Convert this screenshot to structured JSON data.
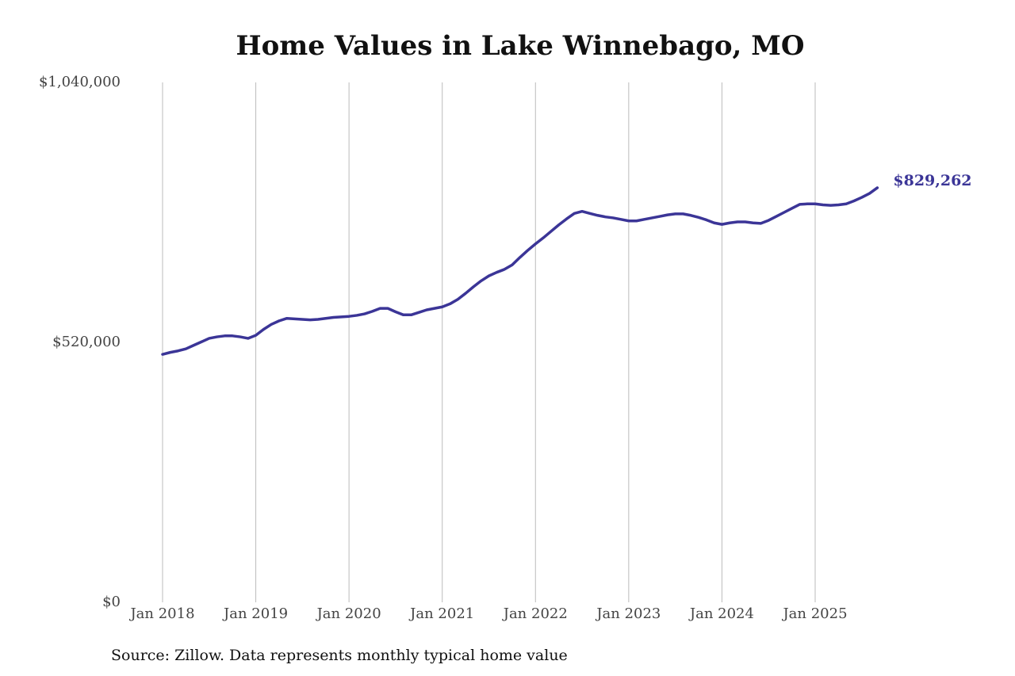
{
  "chart_data": {
    "type": "line",
    "title": "Home Values in Lake Winnebago, MO",
    "source": "Source: Zillow. Data represents monthly typical home value",
    "x": [
      "2018-01",
      "2018-02",
      "2018-03",
      "2018-04",
      "2018-05",
      "2018-06",
      "2018-07",
      "2018-08",
      "2018-09",
      "2018-10",
      "2018-11",
      "2018-12",
      "2019-01",
      "2019-02",
      "2019-03",
      "2019-04",
      "2019-05",
      "2019-06",
      "2019-07",
      "2019-08",
      "2019-09",
      "2019-10",
      "2019-11",
      "2019-12",
      "2020-01",
      "2020-02",
      "2020-03",
      "2020-04",
      "2020-05",
      "2020-06",
      "2020-07",
      "2020-08",
      "2020-09",
      "2020-10",
      "2020-11",
      "2020-12",
      "2021-01",
      "2021-02",
      "2021-03",
      "2021-04",
      "2021-05",
      "2021-06",
      "2021-07",
      "2021-08",
      "2021-09",
      "2021-10",
      "2021-11",
      "2021-12",
      "2022-01",
      "2022-02",
      "2022-03",
      "2022-04",
      "2022-05",
      "2022-06",
      "2022-07",
      "2022-08",
      "2022-09",
      "2022-10",
      "2022-11",
      "2022-12",
      "2023-01",
      "2023-02",
      "2023-03",
      "2023-04",
      "2023-05",
      "2023-06",
      "2023-07",
      "2023-08",
      "2023-09",
      "2023-10",
      "2023-11",
      "2023-12",
      "2024-01",
      "2024-02",
      "2024-03",
      "2024-04",
      "2024-05",
      "2024-06",
      "2024-07",
      "2024-08",
      "2024-09",
      "2024-10",
      "2024-11",
      "2024-12",
      "2025-01",
      "2025-02",
      "2025-03",
      "2025-04",
      "2025-05",
      "2025-06",
      "2025-07",
      "2025-08",
      "2025-09"
    ],
    "series": [
      {
        "color": "#3b3597",
        "values": [
          496000,
          500000,
          503000,
          507000,
          514000,
          521000,
          528000,
          531000,
          533000,
          533000,
          531000,
          528000,
          534000,
          546000,
          556000,
          563000,
          568000,
          567000,
          566000,
          565000,
          566000,
          568000,
          570000,
          571000,
          572000,
          574000,
          577000,
          582000,
          588000,
          588000,
          581000,
          575000,
          575000,
          580000,
          585000,
          588000,
          591000,
          597000,
          606000,
          618000,
          631000,
          643000,
          653000,
          660000,
          666000,
          675000,
          690000,
          704000,
          717000,
          729000,
          742000,
          755000,
          767000,
          778000,
          782000,
          778000,
          774000,
          771000,
          769000,
          766000,
          763000,
          763000,
          766000,
          769000,
          772000,
          775000,
          777000,
          777000,
          774000,
          770000,
          765000,
          759000,
          756000,
          759000,
          761000,
          761000,
          759000,
          758000,
          764000,
          772000,
          780000,
          788000,
          796000,
          797000,
          797000,
          795000,
          794000,
          795000,
          797000,
          803000,
          810000,
          818000,
          829262
        ],
        "value_labels": [
          null,
          null,
          null,
          null,
          null,
          null,
          null,
          null,
          null,
          null,
          null,
          null,
          null,
          null,
          null,
          null,
          null,
          null,
          null,
          null,
          null,
          null,
          null,
          null,
          null,
          null,
          null,
          null,
          null,
          null,
          null,
          null,
          null,
          null,
          null,
          null,
          null,
          null,
          null,
          null,
          null,
          null,
          null,
          null,
          null,
          null,
          null,
          null,
          null,
          null,
          null,
          null,
          null,
          null,
          null,
          null,
          null,
          null,
          null,
          null,
          null,
          null,
          null,
          null,
          null,
          null,
          null,
          null,
          null,
          null,
          null,
          null,
          null,
          null,
          null,
          null,
          null,
          null,
          null,
          null,
          null,
          null,
          null,
          null,
          null,
          null,
          null,
          null,
          null,
          null,
          null,
          null,
          "$829,262"
        ]
      }
    ],
    "ylim": [
      0,
      1040000
    ],
    "yticks": [
      {
        "value": 0,
        "label": "$0"
      },
      {
        "value": 520000,
        "label": "$520,000"
      },
      {
        "value": 1040000,
        "label": "$1,040,000"
      }
    ],
    "xticks": [
      {
        "value": "2018-01",
        "label": "Jan 2018"
      },
      {
        "value": "2019-01",
        "label": "Jan 2019"
      },
      {
        "value": "2020-01",
        "label": "Jan 2020"
      },
      {
        "value": "2021-01",
        "label": "Jan 2021"
      },
      {
        "value": "2022-01",
        "label": "Jan 2022"
      },
      {
        "value": "2023-01",
        "label": "Jan 2023"
      },
      {
        "value": "2024-01",
        "label": "Jan 2024"
      },
      {
        "value": "2025-01",
        "label": "Jan 2025"
      }
    ],
    "grid": "x"
  }
}
